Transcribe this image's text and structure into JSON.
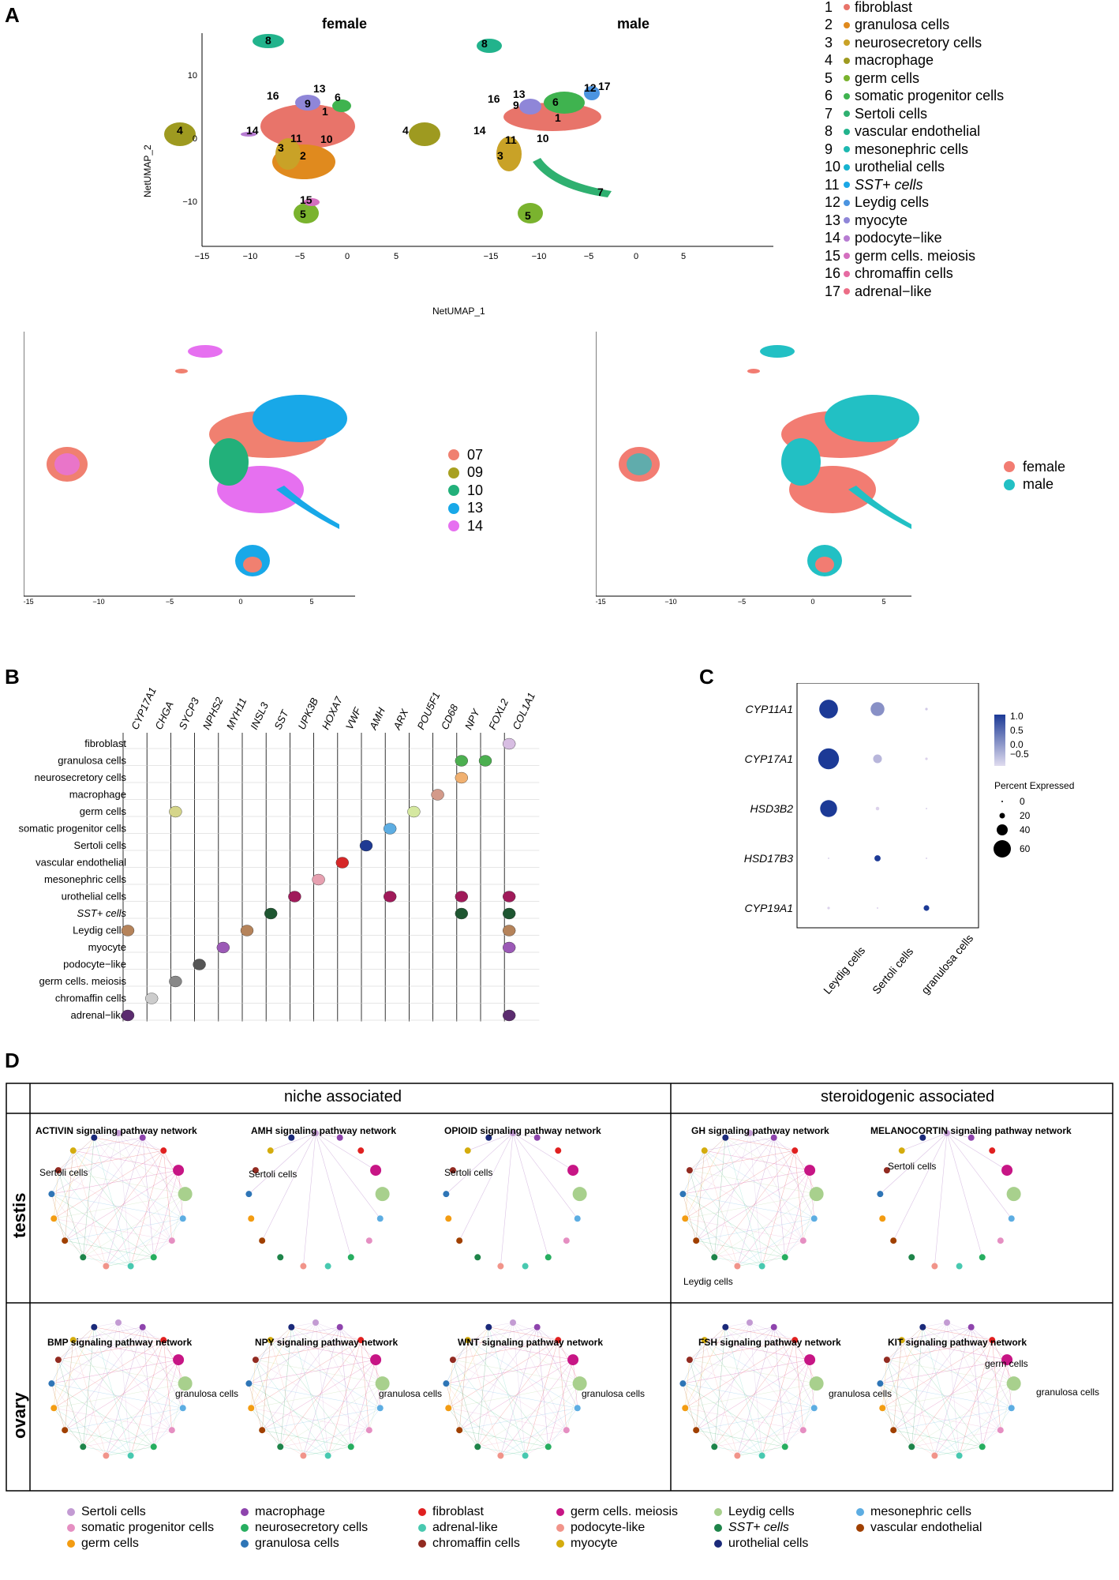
{
  "panels": {
    "A": "A",
    "B": "B",
    "C": "C",
    "D": "D"
  },
  "panelA": {
    "title_female": "female",
    "title_male": "male",
    "xlabel": "NetUMAP_1",
    "ylabel": "NetUMAP_2",
    "xticks": [
      "−15",
      "−10",
      "−5",
      "0",
      "5"
    ],
    "yticks": [
      "10",
      "0",
      "−10"
    ],
    "cluster_labels": [
      "1",
      "2",
      "3",
      "4",
      "5",
      "6",
      "7",
      "8",
      "9",
      "10",
      "11",
      "12",
      "13",
      "14",
      "15",
      "16",
      "17"
    ],
    "legend": [
      {
        "num": "1",
        "label": "fibroblast",
        "color": "#e8746a"
      },
      {
        "num": "2",
        "label": "granulosa cells",
        "color": "#e08a1e"
      },
      {
        "num": "3",
        "label": "neurosecretory cells",
        "color": "#c9a227"
      },
      {
        "num": "4",
        "label": "macrophage",
        "color": "#9e9a20"
      },
      {
        "num": "5",
        "label": "germ cells",
        "color": "#7ab32e"
      },
      {
        "num": "6",
        "label": "somatic progenitor cells",
        "color": "#3fb34f"
      },
      {
        "num": "7",
        "label": "Sertoli cells",
        "color": "#2fb070"
      },
      {
        "num": "8",
        "label": "vascular endothelial",
        "color": "#22b38c"
      },
      {
        "num": "9",
        "label": "mesonephric cells",
        "color": "#1db8b0"
      },
      {
        "num": "10",
        "label": "urothelial cells",
        "color": "#17b3cf"
      },
      {
        "num": "11",
        "label": "SST+ cells",
        "color": "#1aa7e6"
      },
      {
        "num": "12",
        "label": "Leydig cells",
        "color": "#4b94e0"
      },
      {
        "num": "13",
        "label": "myocyte",
        "color": "#8f86d8"
      },
      {
        "num": "14",
        "label": "podocyte−like",
        "color": "#b77cd2"
      },
      {
        "num": "15",
        "label": "germ cells. meiosis",
        "color": "#d46fbf"
      },
      {
        "num": "16",
        "label": "chromaffin cells",
        "color": "#e66ba2"
      },
      {
        "num": "17",
        "label": "adrenal−like",
        "color": "#ec6d86"
      }
    ],
    "batch_legend": [
      {
        "label": "07",
        "color": "#f08070"
      },
      {
        "label": "09",
        "color": "#a8a020"
      },
      {
        "label": "10",
        "color": "#22b07a"
      },
      {
        "label": "13",
        "color": "#18a8e8"
      },
      {
        "label": "14",
        "color": "#e670f0"
      }
    ],
    "sex_legend": [
      {
        "label": "female",
        "color": "#f27c72"
      },
      {
        "label": "male",
        "color": "#22c0c4"
      }
    ]
  },
  "panelB": {
    "genes": [
      "CYP17A1",
      "CHGA",
      "SYCP3",
      "NPHS2",
      "MYH11",
      "INSL3",
      "SST",
      "UPK3B",
      "HOXA7",
      "VWF",
      "AMH",
      "ARX",
      "POU5F1",
      "CD68",
      "NPY",
      "FOXL2",
      "COL1A1"
    ],
    "cells": [
      "fibroblast",
      "granulosa cells",
      "neurosecretory cells",
      "macrophage",
      "germ cells",
      "somatic progenitor cells",
      "Sertoli cells",
      "vascular endothelial",
      "mesonephric cells",
      "urothelial cells",
      "SST+ cells",
      "Leydig cells",
      "myocyte",
      "podocyte−like",
      "germ cells. meiosis",
      "chromaffin cells",
      "adrenal−like"
    ]
  },
  "panelC": {
    "genes": [
      "CYP11A1",
      "CYP17A1",
      "HSD3B2",
      "HSD17B3",
      "CYP19A1"
    ],
    "cells": [
      "Leydig cells",
      "Sertoli cells",
      "granulosa cells"
    ],
    "scale_labels": [
      "1.0",
      "0.5",
      "0.0",
      "−0.5"
    ],
    "pct_title": "Percent Expressed",
    "pct_labels": [
      "0",
      "20",
      "40",
      "60"
    ],
    "dots": [
      [
        {
          "pct": 55,
          "expr": 1.0
        },
        {
          "pct": 30,
          "expr": 0.1
        },
        {
          "pct": 1,
          "expr": -0.5
        }
      ],
      [
        {
          "pct": 68,
          "expr": 1.0
        },
        {
          "pct": 12,
          "expr": -0.3
        },
        {
          "pct": 1,
          "expr": -0.6
        }
      ],
      [
        {
          "pct": 45,
          "expr": 1.0
        },
        {
          "pct": 2,
          "expr": -0.6
        },
        {
          "pct": 0,
          "expr": -0.6
        }
      ],
      [
        {
          "pct": 0,
          "expr": -0.6
        },
        {
          "pct": 6,
          "expr": 1.0
        },
        {
          "pct": 0,
          "expr": -0.6
        }
      ],
      [
        {
          "pct": 1,
          "expr": -0.6
        },
        {
          "pct": 0,
          "expr": -0.6
        },
        {
          "pct": 5,
          "expr": 1.0
        }
      ]
    ]
  },
  "panelD": {
    "header_left": "niche associated",
    "header_right": "steroidogenic associated",
    "row_testis": "testis",
    "row_ovary": "ovary",
    "testis_titles": [
      "ACTIVIN signaling pathway network",
      "AMH signaling pathway network",
      "OPIOID signaling pathway network",
      "GH signaling pathway network",
      "MELANOCORTIN signaling pathway network"
    ],
    "ovary_titles": [
      "BMP signaling pathway network",
      "NPY signaling pathway network",
      "WNT signaling pathway network",
      "FSH signaling pathway network",
      "KIT signaling pathway network"
    ],
    "lbl_sertoli": "Sertoli cells",
    "lbl_leydig": "Leydig cells",
    "lbl_granulosa": "granulosa cells",
    "lbl_germ": "germ cells",
    "bottom_legend": [
      {
        "label": "Sertoli cells",
        "color": "#c39bd3"
      },
      {
        "label": "macrophage",
        "color": "#8e44ad"
      },
      {
        "label": "fibroblast",
        "color": "#e02020"
      },
      {
        "label": "germ cells. meiosis",
        "color": "#c71585"
      },
      {
        "label": "Leydig cells",
        "color": "#a8d08d"
      },
      {
        "label": "mesonephric cells",
        "color": "#5dade2"
      },
      {
        "label": "somatic progenitor cells",
        "color": "#e58fc2"
      },
      {
        "label": "neurosecretory cells",
        "color": "#27ae60"
      },
      {
        "label": "adrenal-like",
        "color": "#48c9b0"
      },
      {
        "label": "podocyte-like",
        "color": "#f1948a"
      },
      {
        "label": "SST+ cells",
        "color": "#1e8449"
      },
      {
        "label": "vascular endothelial",
        "color": "#a04000"
      },
      {
        "label": "germ cells",
        "color": "#f39c12"
      },
      {
        "label": "granulosa cells",
        "color": "#2e75b6"
      },
      {
        "label": "chromaffin cells",
        "color": "#922b21"
      },
      {
        "label": "myocyte",
        "color": "#d4ac0d"
      },
      {
        "label": "urothelial cells",
        "color": "#1b2a7a"
      }
    ]
  }
}
